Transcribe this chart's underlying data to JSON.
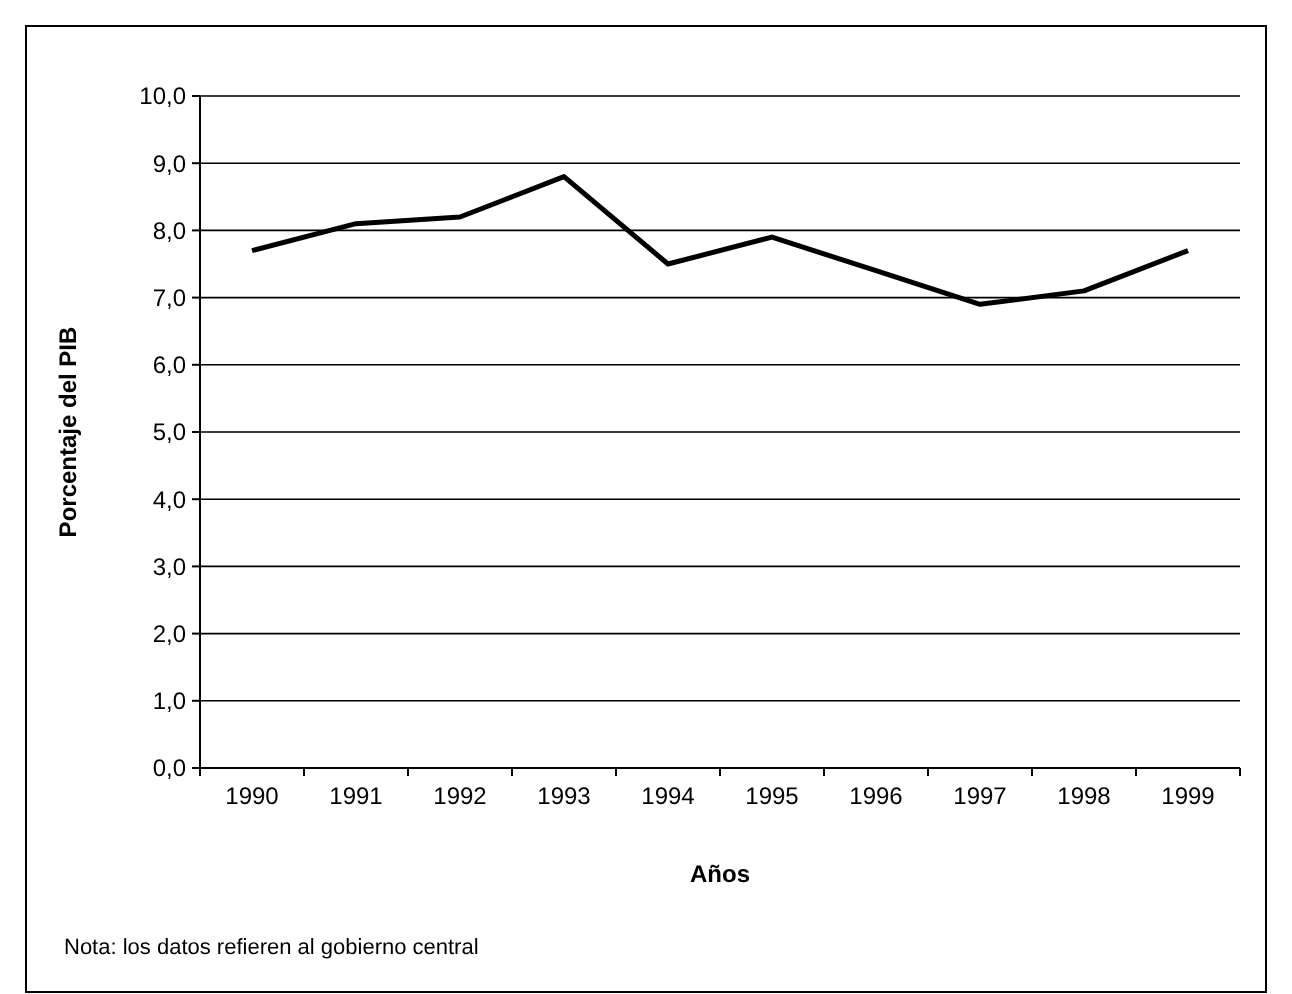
{
  "chart_data": {
    "type": "line",
    "xlabel": "Años",
    "ylabel": "Porcentaje del PIB",
    "categories": [
      "1990",
      "1991",
      "1992",
      "1993",
      "1994",
      "1995",
      "1996",
      "1997",
      "1998",
      "1999"
    ],
    "series": [
      {
        "color": "#000000",
        "values": [
          7.7,
          8.1,
          8.2,
          8.8,
          7.5,
          7.9,
          7.4,
          6.9,
          7.1,
          7.7
        ]
      }
    ],
    "ylim": [
      0,
      10
    ],
    "yticks": [
      {
        "value": 0,
        "label": "0,0"
      },
      {
        "value": 1,
        "label": "1,0"
      },
      {
        "value": 2,
        "label": "2,0"
      },
      {
        "value": 3,
        "label": "3,0"
      },
      {
        "value": 4,
        "label": "4,0"
      },
      {
        "value": 5,
        "label": "5,0"
      },
      {
        "value": 6,
        "label": "6,0"
      },
      {
        "value": 7,
        "label": "7,0"
      },
      {
        "value": 8,
        "label": "8,0"
      },
      {
        "value": 9,
        "label": "9,0"
      },
      {
        "value": 10,
        "label": "10,0"
      }
    ],
    "grid": "y",
    "marker": "none",
    "line_style": "solid",
    "annotations": [
      "Nota: los datos refieren al gobierno central"
    ]
  }
}
